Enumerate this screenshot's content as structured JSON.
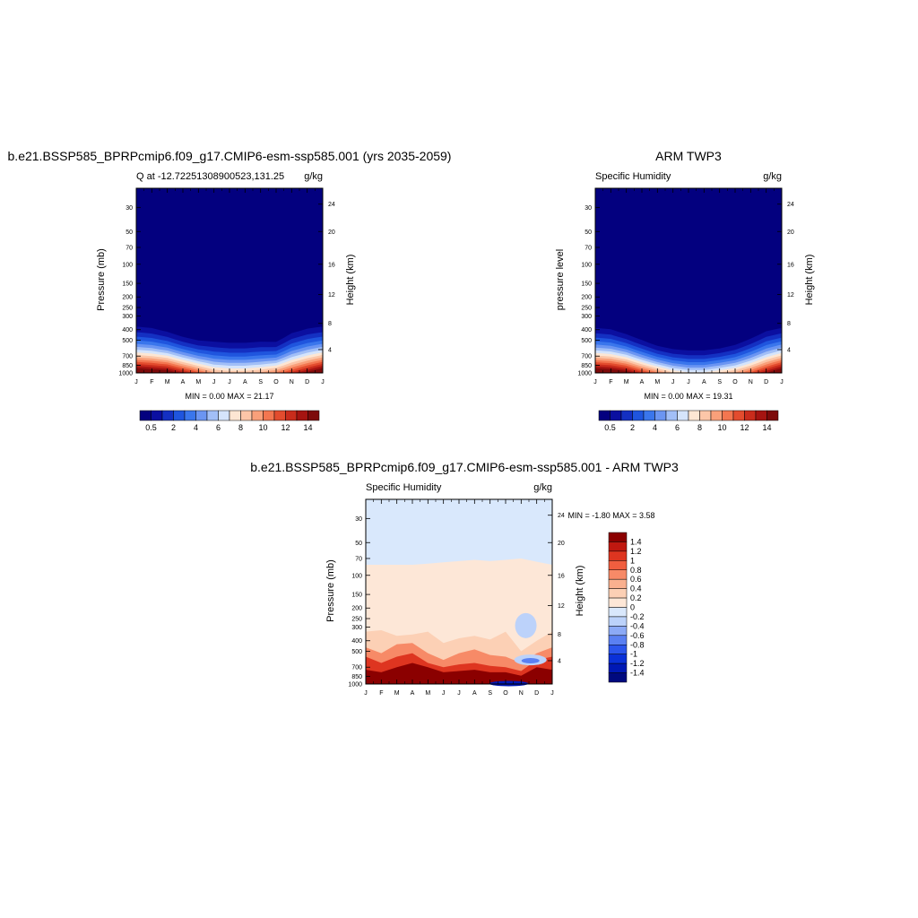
{
  "chart_data": [
    {
      "type": "heatmap",
      "title": "b.e21.BSSP585_BPRPcmip6.f09_g17.CMIP6-esm-ssp585.001 (yrs 2035-2059)",
      "left_string": "Q at -12.72251308900523,131.25",
      "right_string": "g/kg",
      "ylabel": "Pressure (mb)",
      "ylabel_right": "Height (km)",
      "x_ticks": [
        "J",
        "F",
        "M",
        "A",
        "M",
        "J",
        "J",
        "A",
        "S",
        "O",
        "N",
        "D",
        "J"
      ],
      "y_ticks": [
        "30",
        "50",
        "70",
        "100",
        "150",
        "200",
        "250",
        "300",
        "400",
        "500",
        "700",
        "850",
        "1000"
      ],
      "y_ticks_right": [
        "24",
        "20",
        "16",
        "12",
        "8",
        "4"
      ],
      "minmax": "MIN =   0.00 MAX =  21.17",
      "colorbar_labels": [
        "0.5",
        "2",
        "4",
        "6",
        "8",
        "10",
        "12",
        "14"
      ],
      "colorbar_levels": [
        0.5,
        1,
        2,
        3,
        4,
        5,
        6,
        7,
        8,
        9,
        10,
        11,
        12,
        13,
        14
      ],
      "moist_top_pressure_by_month": [
        290,
        300,
        330,
        370,
        400,
        400,
        410,
        410,
        400,
        410,
        330,
        300,
        290
      ],
      "surface_max_by_month": [
        17,
        16.5,
        16,
        14,
        12,
        10,
        9.5,
        9.5,
        10,
        11,
        13,
        15,
        17
      ]
    },
    {
      "type": "heatmap",
      "title": "ARM TWP3",
      "left_string": "Specific Humidity",
      "right_string": "g/kg",
      "ylabel": "pressure level",
      "ylabel_right": "Height (km)",
      "x_ticks": [
        "J",
        "F",
        "M",
        "A",
        "M",
        "J",
        "J",
        "A",
        "S",
        "O",
        "N",
        "D",
        "J"
      ],
      "y_ticks": [
        "30",
        "50",
        "70",
        "100",
        "150",
        "200",
        "250",
        "300",
        "400",
        "500",
        "700",
        "850",
        "1000"
      ],
      "y_ticks_right": [
        "24",
        "20",
        "16",
        "12",
        "8",
        "4"
      ],
      "minmax": "MIN =   0.00 MAX =  19.31",
      "colorbar_labels": [
        "0.5",
        "2",
        "4",
        "6",
        "8",
        "10",
        "12",
        "14"
      ],
      "colorbar_levels": [
        0.5,
        1,
        2,
        3,
        4,
        5,
        6,
        7,
        8,
        9,
        10,
        11,
        12,
        13,
        14
      ],
      "moist_top_pressure_by_month": [
        300,
        310,
        350,
        400,
        460,
        490,
        500,
        500,
        480,
        440,
        380,
        320,
        300
      ],
      "surface_max_by_month": [
        17,
        16.5,
        15.5,
        13,
        11,
        9,
        8,
        8,
        9,
        10,
        12,
        14.5,
        17
      ]
    },
    {
      "type": "heatmap",
      "title": "b.e21.BSSP585_BPRPcmip6.f09_g17.CMIP6-esm-ssp585.001 - ARM TWP3",
      "left_string": "Specific Humidity",
      "right_string": "g/kg",
      "ylabel": "Pressure (mb)",
      "ylabel_right": "Height (km)",
      "x_ticks": [
        "J",
        "F",
        "M",
        "A",
        "M",
        "J",
        "J",
        "A",
        "S",
        "O",
        "N",
        "D",
        "J"
      ],
      "y_ticks": [
        "30",
        "50",
        "70",
        "100",
        "150",
        "200",
        "250",
        "300",
        "400",
        "500",
        "700",
        "850",
        "1000"
      ],
      "y_ticks_right": [
        "24",
        "20",
        "16",
        "12",
        "8",
        "4"
      ],
      "minmax": "MIN =  -1.80 MAX =   3.58",
      "colorbar_labels": [
        "1.4",
        "1.2",
        "1",
        "0.8",
        "0.6",
        "0.4",
        "0.2",
        "0",
        "-0.2",
        "-0.4",
        "-0.6",
        "-0.8",
        "-1",
        "-1.2",
        "-1.4"
      ],
      "colorbar_levels": [
        -1.4,
        -1.2,
        -1,
        -0.8,
        -0.6,
        -0.4,
        -0.2,
        0,
        0.2,
        0.4,
        0.6,
        0.8,
        1,
        1.2,
        1.4
      ],
      "positive_anomaly_top_pressure_by_month": [
        80,
        80,
        80,
        80,
        78,
        76,
        74,
        72,
        74,
        72,
        70,
        75,
        80
      ]
    }
  ],
  "colors": {
    "blue_red_16": [
      "#03007f",
      "#0b0fa0",
      "#1430c2",
      "#1f55de",
      "#3a76ec",
      "#6b95f2",
      "#a2bff7",
      "#d5e4fb",
      "#fde6d3",
      "#fcc6a8",
      "#f9a07a",
      "#f37650",
      "#e34c2e",
      "#c92c1c",
      "#a51411",
      "#7d0a0a"
    ],
    "diff_16": [
      "#000a7f",
      "#0019b5",
      "#0a31d8",
      "#2b55ec",
      "#5a80f2",
      "#8caaf6",
      "#bcd2fa",
      "#d9e8fc",
      "#fde7d7",
      "#fcd0b5",
      "#f9b08f",
      "#f78a67",
      "#f05e3f",
      "#de3520",
      "#c01810",
      "#8b0000"
    ]
  }
}
